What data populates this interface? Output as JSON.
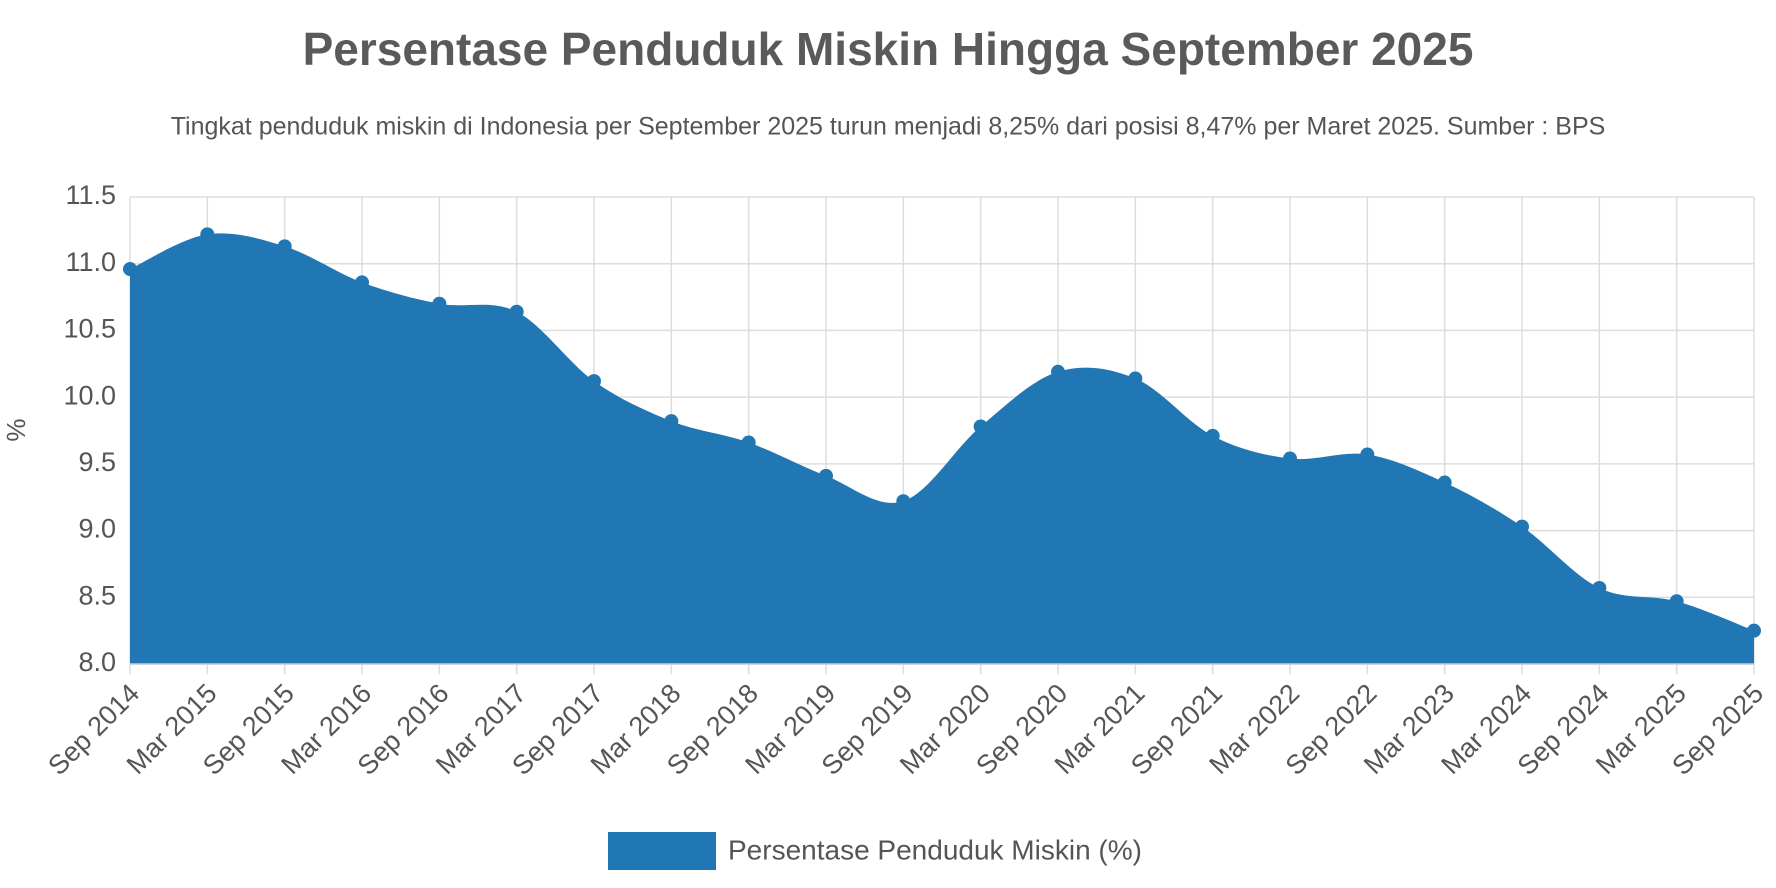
{
  "chart_data": {
    "type": "area",
    "title": "Persentase Penduduk Miskin Hingga September 2025",
    "subtitle": "Tingkat penduduk miskin di Indonesia per September 2025 turun menjadi 8,25% dari posisi 8,47% per Maret 2025. Sumber : BPS",
    "y_label": "%",
    "categories": [
      "Sep 2014",
      "Mar 2015",
      "Sep 2015",
      "Mar 2016",
      "Sep 2016",
      "Mar 2017",
      "Sep 2017",
      "Mar 2018",
      "Sep 2018",
      "Mar 2019",
      "Sep 2019",
      "Mar 2020",
      "Sep 2020",
      "Mar 2021",
      "Sep 2021",
      "Mar 2022",
      "Sep 2022",
      "Mar 2023",
      "Mar 2024",
      "Sep 2024",
      "Mar 2025",
      "Sep 2025"
    ],
    "series": [
      {
        "name": "Persentase Penduduk Miskin (%)",
        "color": "#2176b4",
        "values": [
          10.96,
          11.22,
          11.13,
          10.86,
          10.7,
          10.64,
          10.12,
          9.82,
          9.66,
          9.41,
          9.22,
          9.78,
          10.19,
          10.14,
          9.71,
          9.54,
          9.57,
          9.36,
          9.03,
          8.57,
          8.47,
          8.25
        ]
      }
    ],
    "ylim": [
      8.0,
      11.5
    ],
    "yticks": [
      {
        "value": 8.0,
        "label": "8.0"
      },
      8.5,
      {
        "value": 9.0,
        "label": "9.0"
      },
      9.5,
      {
        "value": 10.0,
        "label": "10.0"
      },
      10.5,
      {
        "value": 11.0,
        "label": "11.0"
      },
      11.5
    ],
    "grid": true
  }
}
